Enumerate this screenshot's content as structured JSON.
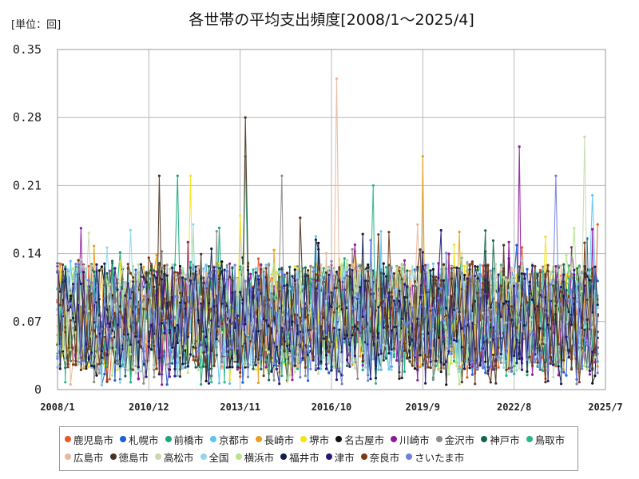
{
  "chart_data": {
    "type": "line",
    "title": "各世帯の平均支出頻度[2008/1～2025/4]",
    "unit_label": "[単位：回]",
    "ylim": [
      0,
      0.35
    ],
    "y_ticks": [
      "0",
      "0.07",
      "0.14",
      "0.21",
      "0.28",
      "0.35"
    ],
    "x_ticks": [
      "2008/1",
      "2010/12",
      "2013/11",
      "2016/10",
      "2019/9",
      "2022/8",
      "2025/7"
    ],
    "x_range": [
      "2008/1",
      "2025/7"
    ],
    "grid": true,
    "legend_position": "bottom",
    "series": [
      {
        "name": "鹿児島市",
        "color": "#e8572a"
      },
      {
        "name": "札幌市",
        "color": "#1f5fd6"
      },
      {
        "name": "前橋市",
        "color": "#1aa876"
      },
      {
        "name": "京都市",
        "color": "#5bc4ef"
      },
      {
        "name": "長崎市",
        "color": "#e6a11c"
      },
      {
        "name": "堺市",
        "color": "#f5e21a"
      },
      {
        "name": "名古屋市",
        "color": "#111111"
      },
      {
        "name": "川崎市",
        "color": "#8e1a9c"
      },
      {
        "name": "金沢市",
        "color": "#8c8c8c"
      },
      {
        "name": "神戸市",
        "color": "#17664a"
      },
      {
        "name": "鳥取市",
        "color": "#2ab58c"
      },
      {
        "name": "広島市",
        "color": "#e8b89a"
      },
      {
        "name": "徳島市",
        "color": "#4a3220"
      },
      {
        "name": "高松市",
        "color": "#c9d9b0"
      },
      {
        "name": "全国",
        "color": "#8fd6ee"
      },
      {
        "name": "横浜市",
        "color": "#b5e68a"
      },
      {
        "name": "福井市",
        "color": "#0e1f4a"
      },
      {
        "name": "津市",
        "color": "#241a7a"
      },
      {
        "name": "奈良市",
        "color": "#7a3a1a"
      },
      {
        "name": "さいたま市",
        "color": "#6f7fe0"
      }
    ],
    "peaks": [
      {
        "series": "広島市",
        "x": "2016/12",
        "y": 0.32
      },
      {
        "series": "徳島市",
        "x": "2014/1",
        "y": 0.28
      },
      {
        "series": "鳥取市",
        "x": "2014/1",
        "y": 0.24
      },
      {
        "series": "長崎市",
        "x": "2019/9",
        "y": 0.24
      },
      {
        "series": "高松市",
        "x": "2024/11",
        "y": 0.26
      },
      {
        "series": "川崎市",
        "x": "2022/10",
        "y": 0.25
      },
      {
        "series": "さいたま市",
        "x": "2023/12",
        "y": 0.22
      },
      {
        "series": "堺市",
        "x": "2012/4",
        "y": 0.22
      },
      {
        "series": "徳島市",
        "x": "2011/4",
        "y": 0.22
      },
      {
        "series": "前橋市",
        "x": "2011/11",
        "y": 0.22
      },
      {
        "series": "金沢市",
        "x": "2015/3",
        "y": 0.22
      },
      {
        "series": "鳥取市",
        "x": "2018/2",
        "y": 0.21
      },
      {
        "series": "京都市",
        "x": "2025/2",
        "y": 0.2
      },
      {
        "series": "鹿児島市",
        "x": "2025/4",
        "y": 0.17
      }
    ]
  }
}
